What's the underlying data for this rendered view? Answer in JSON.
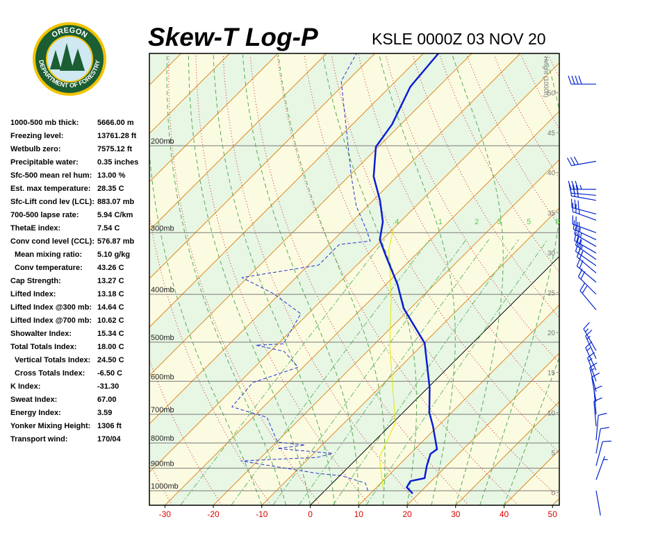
{
  "logo": {
    "top": "OREGON",
    "bottom": "DEPARTMENT OF FORESTRY"
  },
  "indices": {
    "rows": [
      {
        "label": "1000-500 mb thick:",
        "value": "5666.00 m"
      },
      {
        "label": "Freezing level:",
        "value": "13761.28 ft"
      },
      {
        "label": "Wetbulb zero:",
        "value": "7575.12 ft"
      },
      {
        "label": "Precipitable water:",
        "value": "0.35 inches"
      },
      {
        "label": "Sfc-500 mean rel hum:",
        "value": "13.00 %"
      },
      {
        "label": "Est. max temperature:",
        "value": "28.35 C"
      },
      {
        "label": "Sfc-Lift cond lev (LCL):",
        "value": "883.07 mb"
      },
      {
        "label": "700-500 lapse rate:",
        "value": "5.94 C/km"
      },
      {
        "label": "ThetaE index:",
        "value": "7.54 C"
      },
      {
        "label": "Conv cond level (CCL):",
        "value": "576.87 mb"
      },
      {
        "label": "Mean mixing ratio:",
        "value": "5.10 g/kg",
        "indent": true
      },
      {
        "label": "Conv temperature:",
        "value": "43.26 C",
        "indent": true
      },
      {
        "label": "Cap Strength:",
        "value": "13.27 C"
      },
      {
        "label": "Lifted Index:",
        "value": "13.18 C"
      },
      {
        "label": "Lifted Index @300 mb:",
        "value": "14.64 C"
      },
      {
        "label": "Lifted Index @700 mb:",
        "value": "10.62 C"
      },
      {
        "label": "Showalter Index:",
        "value": "15.34 C"
      },
      {
        "label": "Total Totals Index:",
        "value": "18.00 C"
      },
      {
        "label": "Vertical Totals Index:",
        "value": "24.50 C",
        "indent": true
      },
      {
        "label": "Cross Totals Index:",
        "value": "-6.50 C",
        "indent": true
      },
      {
        "label": "K Index:",
        "value": "-31.30"
      },
      {
        "label": "Sweat Index:",
        "value": "67.00"
      },
      {
        "label": "Energy Index:",
        "value": "3.59"
      },
      {
        "label": "Yonker Mixing Height:",
        "value": "1306 ft"
      },
      {
        "label": "Transport wind:",
        "value": "170/04"
      }
    ]
  },
  "chart_data": {
    "type": "skewt",
    "title": "Skew-T Log-P",
    "subtitle": "KSLE 0000Z 03 NOV 20",
    "xlim": [
      -33.2,
      51.4
    ],
    "xticks": [
      -30,
      -20,
      -10,
      0,
      10,
      20,
      30,
      40,
      50
    ],
    "ylim": [
      1070,
      130
    ],
    "log": true,
    "yticks": [
      {
        "value": 1000,
        "label": "1000mb"
      },
      {
        "value": 900,
        "label": "900mb"
      },
      {
        "value": 800,
        "label": "800mb"
      },
      {
        "value": 700,
        "label": "700mb"
      },
      {
        "value": 600,
        "label": "600mb"
      },
      {
        "value": 500,
        "label": "500mb"
      },
      {
        "value": 400,
        "label": "400mb"
      },
      {
        "value": 300,
        "label": "300mb"
      },
      {
        "value": 200,
        "label": "200mb"
      }
    ],
    "y2label": "Height (1000ft)",
    "y2lim": [
      -1.6,
      54.9
    ],
    "y2ticks": [
      0,
      5,
      10,
      15,
      20,
      25,
      30,
      35,
      40,
      45,
      50
    ],
    "temperature": {
      "color": "#0a1ed2",
      "p": [
        1013,
        984,
        956,
        943,
        890,
        842,
        824,
        740,
        694,
        619,
        502,
        427,
        382,
        336,
        310,
        285,
        258,
        231,
        201,
        181,
        152,
        148,
        130
      ],
      "t": [
        18.7,
        16.2,
        15.7,
        18.0,
        15.9,
        14.2,
        14.6,
        9.0,
        5.4,
        0.4,
        -9.9,
        -21.4,
        -27.6,
        -35.6,
        -40.5,
        -43.6,
        -48.6,
        -54.8,
        -60.5,
        -61.8,
        -65.8,
        -66.0,
        -66.9
      ]
    },
    "dewpoint": {
      "color": "#2233cc",
      "p": [
        1000,
        965,
        932,
        922,
        870,
        856,
        840,
        821,
        808,
        797,
        710,
        676,
        604,
        562,
        522,
        507,
        504,
        438,
        398,
        370,
        349,
        317,
        312,
        297,
        265,
        231,
        175,
        148,
        130
      ],
      "t": [
        8.9,
        6.8,
        0.3,
        -5.2,
        -23.5,
        -8.5,
        -6.1,
        -18.5,
        -13.5,
        -19.8,
        -27.1,
        -36.5,
        -37.2,
        -31.0,
        -37.2,
        -44.3,
        -38.9,
        -41.5,
        -51.5,
        -61.1,
        -47.9,
        -47.9,
        -42.2,
        -45.1,
        -52.3,
        -59.4,
        -73.0,
        -81.2,
        -83.8
      ]
    },
    "parcel": {
      "color": "#e6e600",
      "p": [
        990,
        856,
        728,
        510,
        407,
        324,
        294
      ],
      "t": [
        11.6,
        4.4,
        0.5,
        -16.4,
        -26.1,
        -36.7,
        -40.0
      ]
    },
    "mixing_ratios": [
      {
        "value": 0.4,
        "label": ".4"
      },
      1,
      2,
      3,
      5,
      8
    ],
    "winds": {
      "p": [
        150,
        215,
        245,
        252,
        258,
        275,
        283,
        300,
        310,
        320,
        330,
        340,
        350,
        362,
        378,
        400,
        430,
        520,
        540,
        570,
        600,
        630,
        660,
        700,
        740,
        790,
        840,
        890,
        950,
        1000
      ],
      "direction": [
        270,
        260,
        270,
        275,
        280,
        285,
        290,
        290,
        295,
        300,
        300,
        305,
        305,
        310,
        310,
        315,
        320,
        330,
        335,
        335,
        340,
        345,
        350,
        355,
        355,
        5,
        10,
        15,
        20,
        170
      ],
      "speed": [
        40,
        30,
        35,
        30,
        30,
        30,
        25,
        25,
        25,
        25,
        25,
        25,
        25,
        20,
        20,
        20,
        20,
        15,
        15,
        15,
        15,
        15,
        10,
        10,
        10,
        10,
        10,
        10,
        5,
        4
      ]
    }
  }
}
